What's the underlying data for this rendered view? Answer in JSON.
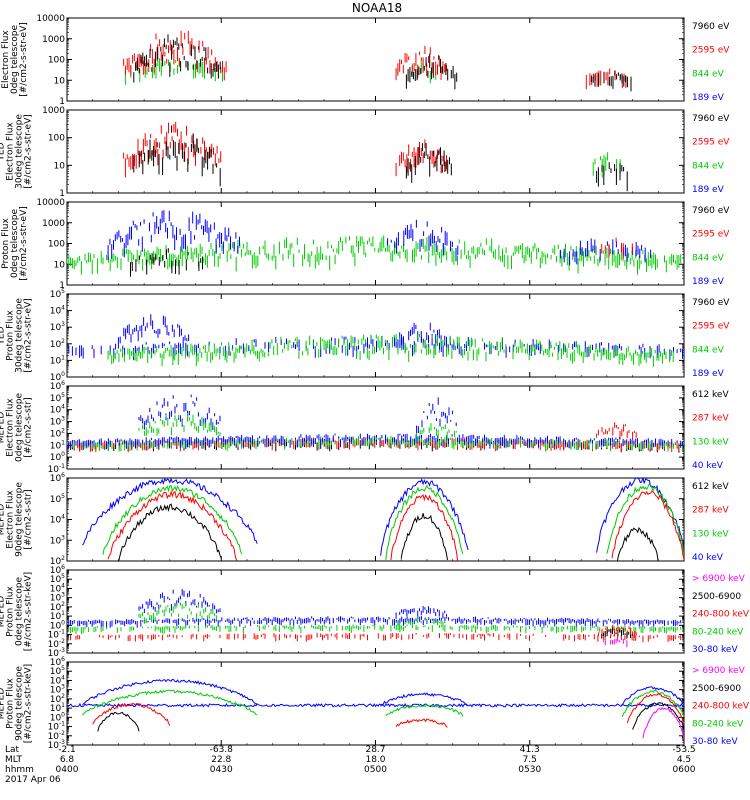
{
  "title": "NOAA18",
  "date_label": "2017 Apr 06",
  "x_axis": {
    "row_labels": [
      "Lat",
      "MLT",
      "hhmm"
    ],
    "ticks": [
      {
        "lat": "-2.1",
        "mlt": "6.8",
        "hhmm": "0400",
        "t": 0
      },
      {
        "lat": "-63.8",
        "mlt": "22.8",
        "hhmm": "0430",
        "t": 30
      },
      {
        "lat": "28.7",
        "mlt": "18.0",
        "hhmm": "0500",
        "t": 60
      },
      {
        "lat": "41.3",
        "mlt": "7.5",
        "hhmm": "0530",
        "t": 90
      },
      {
        "lat": "-53.5",
        "mlt": "4.5",
        "hhmm": "0600",
        "t": 120
      }
    ]
  },
  "colors": {
    "black": "#000000",
    "red": "#ff0000",
    "green": "#00cc00",
    "blue": "#0000ff",
    "magenta": "#ff00ff"
  },
  "chart_data": [
    {
      "type": "scatter",
      "ylog": true,
      "yfmt": "plain",
      "ymin_exp": 0,
      "ymax_exp": 4,
      "ylabel": [
        "Electron Flux",
        "0deg telescope",
        "[#/cm2-s-str-eV]"
      ],
      "legend": [
        {
          "label": "7960 eV",
          "color": "black"
        },
        {
          "label": "2595 eV",
          "color": "red"
        },
        {
          "label": "844 eV",
          "color": "green"
        },
        {
          "label": "189 eV",
          "color": "blue"
        }
      ],
      "bursts": [
        {
          "color": "green",
          "t0": 11,
          "t1": 31,
          "peak": 2.2,
          "base": 1.2,
          "dens": 0.5
        },
        {
          "color": "red",
          "t0": 11,
          "t1": 31,
          "peak": 3.5,
          "base": 1.2,
          "dens": 0.9
        },
        {
          "color": "black",
          "t0": 13,
          "t1": 30,
          "peak": 3.3,
          "base": 1.0,
          "dens": 0.9
        },
        {
          "color": "green",
          "t0": 64,
          "t1": 72,
          "peak": 2.2,
          "base": 1.2,
          "dens": 0.4
        },
        {
          "color": "red",
          "t0": 64,
          "t1": 74,
          "peak": 2.8,
          "base": 1.2,
          "dens": 0.9
        },
        {
          "color": "black",
          "t0": 66,
          "t1": 76,
          "peak": 2.3,
          "base": 1.0,
          "dens": 0.9
        },
        {
          "color": "red",
          "t0": 101,
          "t1": 109,
          "peak": 1.6,
          "base": 1.1,
          "dens": 0.7
        },
        {
          "color": "black",
          "t0": 102,
          "t1": 110,
          "peak": 1.5,
          "base": 1.0,
          "dens": 0.7
        }
      ]
    },
    {
      "type": "scatter",
      "ylog": true,
      "yfmt": "plain",
      "ymin_exp": 0,
      "ymax_exp": 3,
      "ylabel": [
        "TED",
        "Electron Flux",
        "30deg telescope",
        "[#/cm2-s-str-eV]"
      ],
      "legend": [
        {
          "label": "7960 eV",
          "color": "black"
        },
        {
          "label": "2595 eV",
          "color": "red"
        },
        {
          "label": "844 eV",
          "color": "green"
        },
        {
          "label": "189 eV",
          "color": "blue"
        }
      ],
      "bursts": [
        {
          "color": "red",
          "t0": 11,
          "t1": 30,
          "peak": 2.6,
          "base": 1.0,
          "dens": 0.9
        },
        {
          "color": "black",
          "t0": 13,
          "t1": 30,
          "peak": 2.5,
          "base": 0.6,
          "dens": 0.9
        },
        {
          "color": "blue",
          "t0": 31,
          "t1": 32,
          "peak": 2.0,
          "base": 1.8,
          "dens": 0.5
        },
        {
          "color": "red",
          "t0": 64,
          "t1": 74,
          "peak": 2.0,
          "base": 0.9,
          "dens": 0.9
        },
        {
          "color": "black",
          "t0": 66,
          "t1": 75,
          "peak": 1.9,
          "base": 0.7,
          "dens": 0.9
        },
        {
          "color": "green",
          "t0": 102,
          "t1": 108,
          "peak": 1.5,
          "base": 1.0,
          "dens": 0.6
        },
        {
          "color": "black",
          "t0": 103,
          "t1": 109,
          "peak": 1.2,
          "base": 0.7,
          "dens": 0.6
        }
      ]
    },
    {
      "type": "scatter",
      "ylog": true,
      "yfmt": "plain",
      "ymin_exp": 0,
      "ymax_exp": 4,
      "ylabel": [
        "Proton Flux",
        "0deg telescope",
        "[#/cm2-s-str-eV]"
      ],
      "legend": [
        {
          "label": "7960 eV",
          "color": "black"
        },
        {
          "label": "2595 eV",
          "color": "red"
        },
        {
          "label": "844 eV",
          "color": "green"
        },
        {
          "label": "189 eV",
          "color": "blue"
        }
      ],
      "bursts": [
        {
          "color": "green",
          "t0": 0,
          "t1": 120,
          "peak": 2.4,
          "base": 0.9,
          "dens": 0.9
        },
        {
          "color": "blue",
          "t0": 8,
          "t1": 34,
          "peak": 3.7,
          "base": 1.5,
          "dens": 0.9
        },
        {
          "color": "blue",
          "t0": 62,
          "t1": 76,
          "peak": 3.2,
          "base": 1.5,
          "dens": 0.8
        },
        {
          "color": "blue",
          "t0": 96,
          "t1": 114,
          "peak": 2.4,
          "base": 1.3,
          "dens": 0.6
        },
        {
          "color": "black",
          "t0": 12,
          "t1": 28,
          "peak": 1.8,
          "base": 0.8,
          "dens": 0.6
        },
        {
          "color": "red",
          "t0": 104,
          "t1": 110,
          "peak": 2.3,
          "base": 1.8,
          "dens": 0.5
        }
      ]
    },
    {
      "type": "scatter",
      "ylog": true,
      "yfmt": "exp",
      "ymin_exp": 0,
      "ymax_exp": 5,
      "ylabel": [
        "TED",
        "Proton Flux",
        "30deg telescope",
        "[#/cm2-s-str-eV]"
      ],
      "legend": [
        {
          "label": "7960 eV",
          "color": "black"
        },
        {
          "label": "2595 eV",
          "color": "red"
        },
        {
          "label": "844 eV",
          "color": "green"
        },
        {
          "label": "189 eV",
          "color": "blue"
        }
      ],
      "bursts": [
        {
          "color": "blue",
          "t0": 0,
          "t1": 120,
          "peak": 2.5,
          "base": 1.5,
          "dens": 0.5
        },
        {
          "color": "blue",
          "t0": 10,
          "t1": 24,
          "peak": 3.8,
          "base": 2.0,
          "dens": 0.9
        },
        {
          "color": "blue",
          "t0": 64,
          "t1": 74,
          "peak": 3.4,
          "base": 2.0,
          "dens": 0.8
        },
        {
          "color": "green",
          "t0": 8,
          "t1": 118,
          "peak": 2.6,
          "base": 1.0,
          "dens": 0.9
        }
      ]
    },
    {
      "type": "scatter",
      "ylog": true,
      "yfmt": "exp",
      "ymin_exp": -1,
      "ymax_exp": 6,
      "ylabel": [
        "MEPED",
        "Electron Flux",
        "0deg telescope",
        "[#/cm2-s-str]"
      ],
      "legend": [
        {
          "label": "612 keV",
          "color": "black"
        },
        {
          "label": "287 keV",
          "color": "red"
        },
        {
          "label": "130 keV",
          "color": "green"
        },
        {
          "label": "40 keV",
          "color": "blue"
        }
      ],
      "bursts": [
        {
          "color": "black",
          "t0": 0,
          "t1": 120,
          "peak": 1.6,
          "base": 1.0,
          "dens": 0.8
        },
        {
          "color": "red",
          "t0": 0,
          "t1": 120,
          "peak": 1.7,
          "base": 1.0,
          "dens": 0.8
        },
        {
          "color": "green",
          "t0": 0,
          "t1": 120,
          "peak": 1.8,
          "base": 1.0,
          "dens": 0.8
        },
        {
          "color": "blue",
          "t0": 0,
          "t1": 120,
          "peak": 2.0,
          "base": 1.2,
          "dens": 0.8
        },
        {
          "color": "blue",
          "t0": 14,
          "t1": 30,
          "peak": 5.5,
          "base": 2.0,
          "dens": 0.95
        },
        {
          "color": "green",
          "t0": 14,
          "t1": 30,
          "peak": 3.8,
          "base": 1.8,
          "dens": 0.9
        },
        {
          "color": "blue",
          "t0": 68,
          "t1": 76,
          "peak": 5.2,
          "base": 2.0,
          "dens": 0.9
        },
        {
          "color": "green",
          "t0": 68,
          "t1": 76,
          "peak": 3.0,
          "base": 1.8,
          "dens": 0.8
        },
        {
          "color": "red",
          "t0": 103,
          "t1": 111,
          "peak": 3.0,
          "base": 1.8,
          "dens": 0.9
        }
      ]
    },
    {
      "type": "line",
      "ylog": true,
      "yfmt": "exp",
      "ymin_exp": 2,
      "ymax_exp": 6,
      "ylabel": [
        "MEPED",
        "Electron Flux",
        "90deg telescope",
        "[#/cm2-s-str]"
      ],
      "legend": [
        {
          "label": "612 keV",
          "color": "black"
        },
        {
          "label": "287 keV",
          "color": "red"
        },
        {
          "label": "130 keV",
          "color": "green"
        },
        {
          "label": "40 keV",
          "color": "blue"
        }
      ],
      "humps": [
        {
          "color": "blue",
          "t0": 3,
          "t1": 37,
          "peak": 5.9,
          "base": 2.7
        },
        {
          "color": "green",
          "t0": 7,
          "t1": 34,
          "peak": 5.5,
          "base": 2.3
        },
        {
          "color": "red",
          "t0": 8,
          "t1": 33,
          "peak": 5.2,
          "base": 2.0
        },
        {
          "color": "black",
          "t0": 10,
          "t1": 30,
          "peak": 4.6,
          "base": 2.0
        },
        {
          "color": "blue",
          "t0": 61,
          "t1": 78,
          "peak": 5.8,
          "base": 2.4
        },
        {
          "color": "green",
          "t0": 62,
          "t1": 77,
          "peak": 5.5,
          "base": 2.2
        },
        {
          "color": "red",
          "t0": 63,
          "t1": 76,
          "peak": 5.1,
          "base": 2.0
        },
        {
          "color": "black",
          "t0": 65,
          "t1": 74,
          "peak": 4.2,
          "base": 2.0
        },
        {
          "color": "blue",
          "t0": 103,
          "t1": 120,
          "peak": 5.9,
          "base": 2.5
        },
        {
          "color": "green",
          "t0": 105,
          "t1": 120,
          "peak": 5.6,
          "base": 2.3
        },
        {
          "color": "red",
          "t0": 106,
          "t1": 120,
          "peak": 5.3,
          "base": 2.0
        },
        {
          "color": "black",
          "t0": 107,
          "t1": 115,
          "peak": 3.5,
          "base": 2.0
        }
      ]
    },
    {
      "type": "scatter",
      "ylog": true,
      "yfmt": "exp",
      "ymin_exp": -3,
      "ymax_exp": 6,
      "ylabel": [
        "MEPED",
        "Proton Flux",
        "0deg telescope",
        "[#/cm2-s-str-keV]"
      ],
      "legend": [
        {
          "label": "> 6900 keV",
          "color": "magenta"
        },
        {
          "label": "2500-6900",
          "color": "black"
        },
        {
          "label": "240-800 keV",
          "color": "red"
        },
        {
          "label": "80-240 keV",
          "color": "green"
        },
        {
          "label": "30-80 keV",
          "color": "blue"
        }
      ],
      "bursts": [
        {
          "color": "blue",
          "t0": 0,
          "t1": 120,
          "peak": 1.0,
          "base": 0.3,
          "dens": 0.9
        },
        {
          "color": "green",
          "t0": 0,
          "t1": 120,
          "peak": 0.1,
          "base": -0.3,
          "dens": 0.6
        },
        {
          "color": "red",
          "t0": 0,
          "t1": 120,
          "peak": -0.8,
          "base": -1.2,
          "dens": 0.4
        },
        {
          "color": "blue",
          "t0": 14,
          "t1": 30,
          "peak": 4.0,
          "base": 1.0,
          "dens": 0.95
        },
        {
          "color": "green",
          "t0": 14,
          "t1": 30,
          "peak": 2.7,
          "base": 0.3,
          "dens": 0.9
        },
        {
          "color": "blue",
          "t0": 64,
          "t1": 74,
          "peak": 2.3,
          "base": 1.0,
          "dens": 0.9
        },
        {
          "color": "green",
          "t0": 64,
          "t1": 74,
          "peak": 1.0,
          "base": 0.1,
          "dens": 0.8
        },
        {
          "color": "red",
          "t0": 103,
          "t1": 111,
          "peak": 0.2,
          "base": -1.0,
          "dens": 0.9
        },
        {
          "color": "black",
          "t0": 104,
          "t1": 110,
          "peak": -0.2,
          "base": -1.2,
          "dens": 0.8
        },
        {
          "color": "magenta",
          "t0": 104,
          "t1": 110,
          "peak": -1.4,
          "base": -1.8,
          "dens": 0.7
        }
      ]
    },
    {
      "type": "line",
      "ylog": true,
      "yfmt": "exp",
      "ymin_exp": -3,
      "ymax_exp": 6,
      "ylabel": [
        "MEPED",
        "Proton Flux",
        "90deg telescope",
        "[#/cm2-s-str-keV]"
      ],
      "legend": [
        {
          "label": "> 6900 keV",
          "color": "magenta"
        },
        {
          "label": "2500-6900",
          "color": "black"
        },
        {
          "label": "240-800 keV",
          "color": "red"
        },
        {
          "label": "80-240 keV",
          "color": "green"
        },
        {
          "label": "30-80 keV",
          "color": "blue"
        }
      ],
      "humps": [
        {
          "color": "blue",
          "t0": 0,
          "t1": 120,
          "peak": 1.3,
          "base": 1.3
        },
        {
          "color": "blue",
          "t0": 3,
          "t1": 37,
          "peak": 4.0,
          "base": 1.3
        },
        {
          "color": "green",
          "t0": 3,
          "t1": 37,
          "peak": 2.8,
          "base": 0.2
        },
        {
          "color": "red",
          "t0": 5,
          "t1": 20,
          "peak": 1.4,
          "base": -0.8
        },
        {
          "color": "black",
          "t0": 6,
          "t1": 14,
          "peak": 0.5,
          "base": -1.5
        },
        {
          "color": "blue",
          "t0": 61,
          "t1": 78,
          "peak": 2.5,
          "base": 1.3
        },
        {
          "color": "green",
          "t0": 62,
          "t1": 77,
          "peak": 1.3,
          "base": 0.2
        },
        {
          "color": "red",
          "t0": 64,
          "t1": 74,
          "peak": -0.3,
          "base": -1.0
        },
        {
          "color": "blue",
          "t0": 108,
          "t1": 120,
          "peak": 3.2,
          "base": 1.3
        },
        {
          "color": "green",
          "t0": 108,
          "t1": 120,
          "peak": 2.8,
          "base": 0.0
        },
        {
          "color": "red",
          "t0": 109,
          "t1": 120,
          "peak": 2.5,
          "base": -0.7
        },
        {
          "color": "black",
          "t0": 110,
          "t1": 120,
          "peak": 1.5,
          "base": -1.3
        },
        {
          "color": "magenta",
          "t0": 112,
          "t1": 120,
          "peak": 1.0,
          "base": -2.3
        }
      ]
    }
  ]
}
